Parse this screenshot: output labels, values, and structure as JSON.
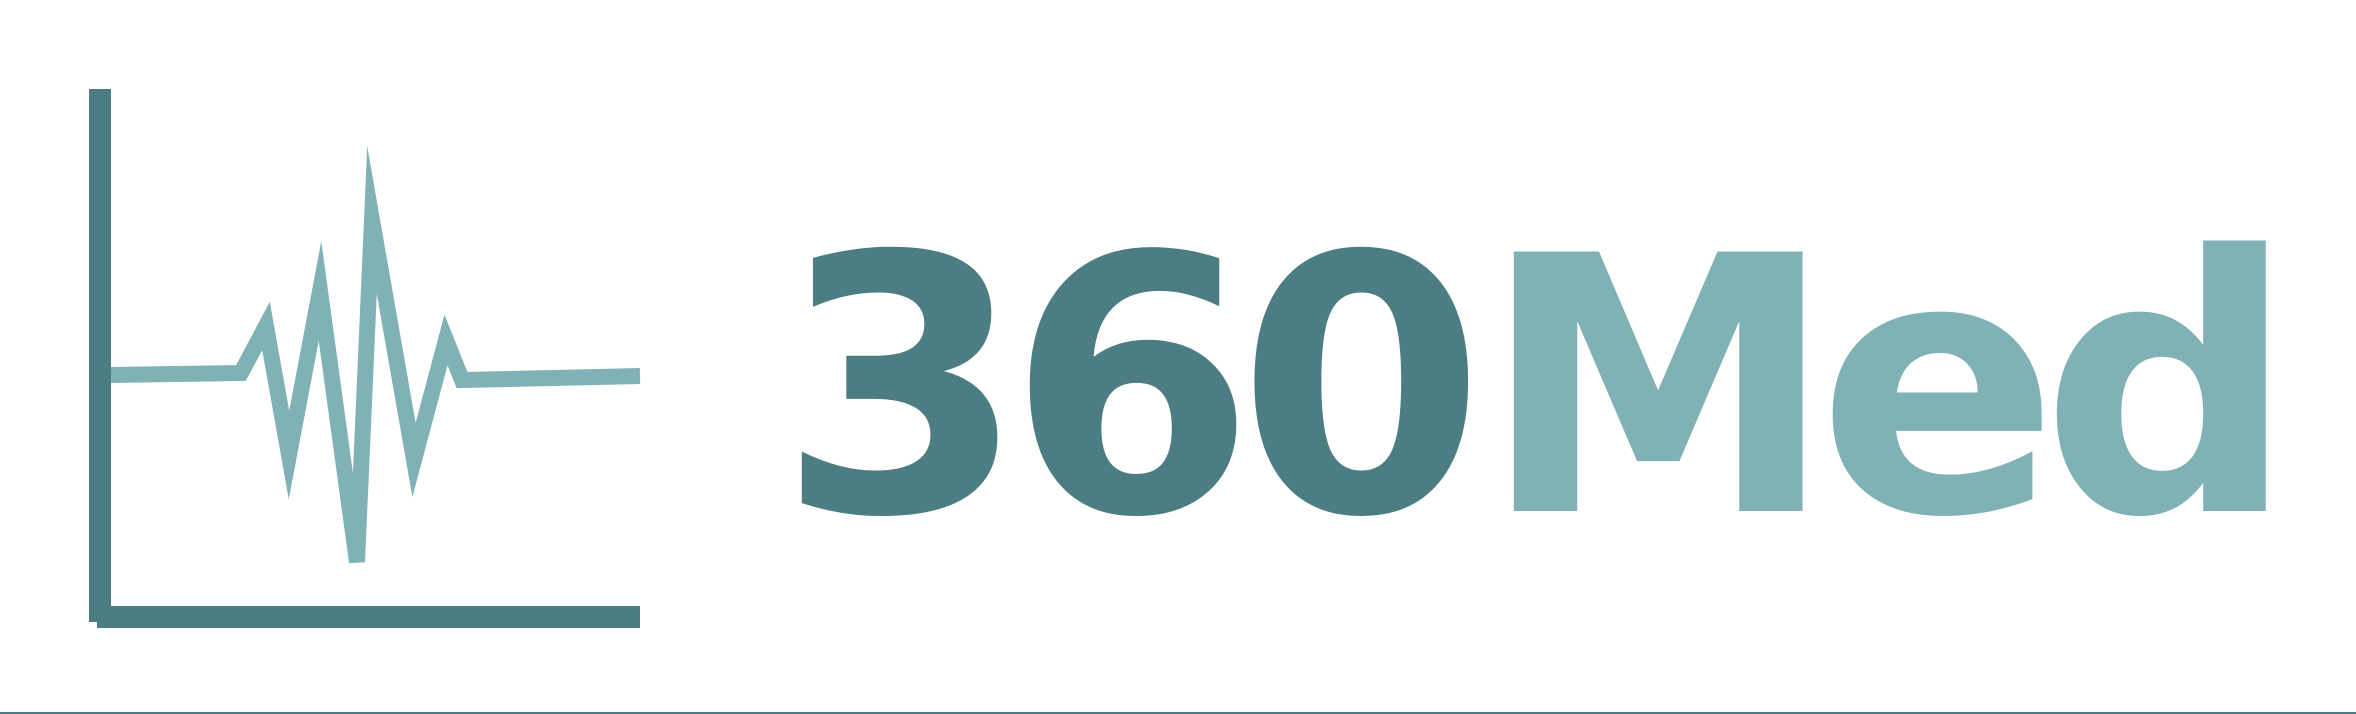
{
  "brand": {
    "number": "360",
    "suffix": "Med"
  },
  "colors": {
    "primary": "#4c7d82",
    "secondary": "#80b2b5",
    "background": "#ffffff"
  },
  "logo_icon": "heartbeat-chart-icon"
}
